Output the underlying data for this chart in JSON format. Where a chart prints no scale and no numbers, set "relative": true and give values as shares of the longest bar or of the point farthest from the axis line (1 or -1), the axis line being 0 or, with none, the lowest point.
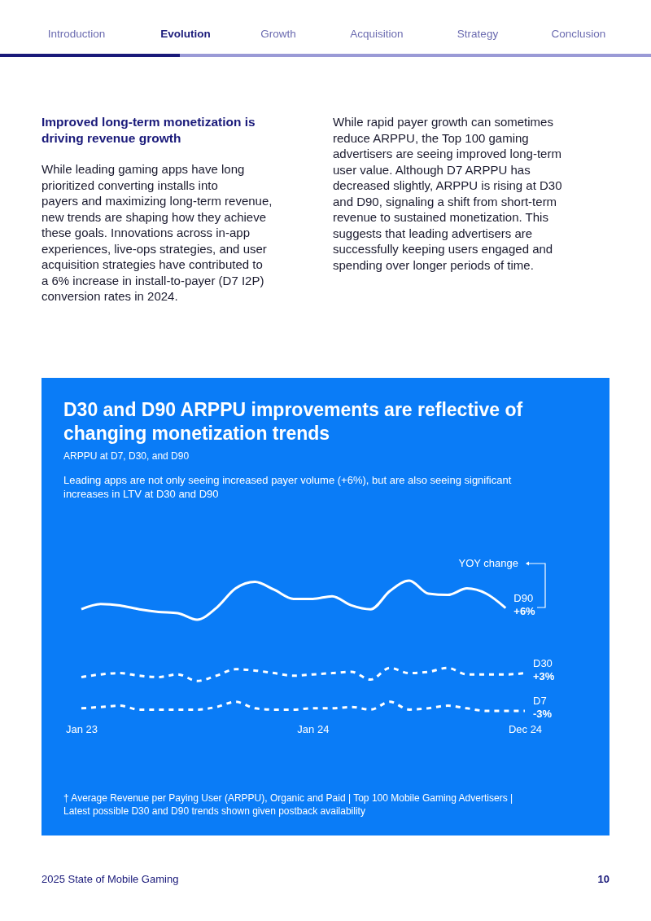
{
  "chart_data": {
    "type": "line",
    "title": "D30 and D90 ARPPU improvements are reflective of changing monetization trends",
    "subtitle": "ARPPU at D7, D30, and D90",
    "relative": true,
    "tick_labels": "x",
    "categories": [
      "Jan 23",
      null,
      null,
      null,
      null,
      null,
      null,
      null,
      null,
      null,
      null,
      null,
      "Jan 24",
      null,
      null,
      null,
      null,
      null,
      null,
      null,
      null,
      null,
      null,
      "Dec 24"
    ],
    "series": [
      {
        "name": "D90",
        "color": "#ffffff",
        "line_style": "solid",
        "values": [
          0.78,
          0.82,
          0.81,
          0.78,
          0.76,
          0.75,
          0.7,
          0.79,
          0.94,
          0.99,
          0.93,
          0.86,
          0.86,
          0.88,
          0.81,
          0.78,
          0.92,
          1,
          0.9,
          0.89,
          0.94,
          0.9,
          0.79,
          null
        ]
      },
      {
        "name": "D30",
        "color": "#ffffff",
        "line_style": "dashed",
        "values": [
          0.26,
          0.28,
          0.29,
          0.27,
          0.26,
          0.28,
          0.23,
          0.27,
          0.32,
          0.31,
          0.29,
          0.27,
          0.28,
          0.29,
          0.3,
          0.24,
          0.33,
          0.29,
          0.3,
          0.33,
          0.28,
          0.28,
          0.28,
          0.29
        ]
      },
      {
        "name": "D7",
        "color": "#ffffff",
        "line_style": "dashed",
        "values": [
          0.02,
          0.03,
          0.04,
          0.01,
          0.01,
          0.01,
          0.01,
          0.03,
          0.07,
          0.02,
          0.01,
          0.01,
          0.02,
          0.02,
          0.03,
          0.01,
          0.07,
          0.01,
          0.02,
          0.04,
          0.02,
          0,
          0,
          0
        ]
      }
    ],
    "annotations": [
      "Introduction",
      "Evolution",
      "Growth",
      "Acquisition",
      "Strategy",
      "Conclusion",
      "Improved long-term monetization is driving revenue growth",
      "While leading gaming apps have long prioritized converting installs into payers and maximizing long-term revenue, new trends are shaping how they achieve these goals. Innovations across in-app experiences, live-ops strategies, and user acquisition strategies have contributed to a 6% increase in install-to-payer (D7 I2P) conversion rates in 2024.",
      "While rapid payer growth can sometimes reduce ARPPU, the Top 100 gaming advertisers are seeing improved long-term user value. Although D7 ARPPU has decreased slightly, ARPPU is rising at D30 and D90, signaling a shift from short-term revenue to sustained monetization. This suggests that leading advertisers are successfully keeping users engaged and spending over longer periods of time.",
      "Leading apps are not only seeing increased payer volume (+6%), but are also seeing significant increases in LTV at D30 and D90",
      "YOY change",
      "+6%",
      "+3%",
      "-3%",
      "† Average Revenue per Paying User (ARPPU), Organic and Paid | Top 100 Mobile Gaming Advertisers | Latest possible D30 and D90 trends shown given postback availability",
      "2025 State of Mobile Gaming",
      "10"
    ]
  }
}
